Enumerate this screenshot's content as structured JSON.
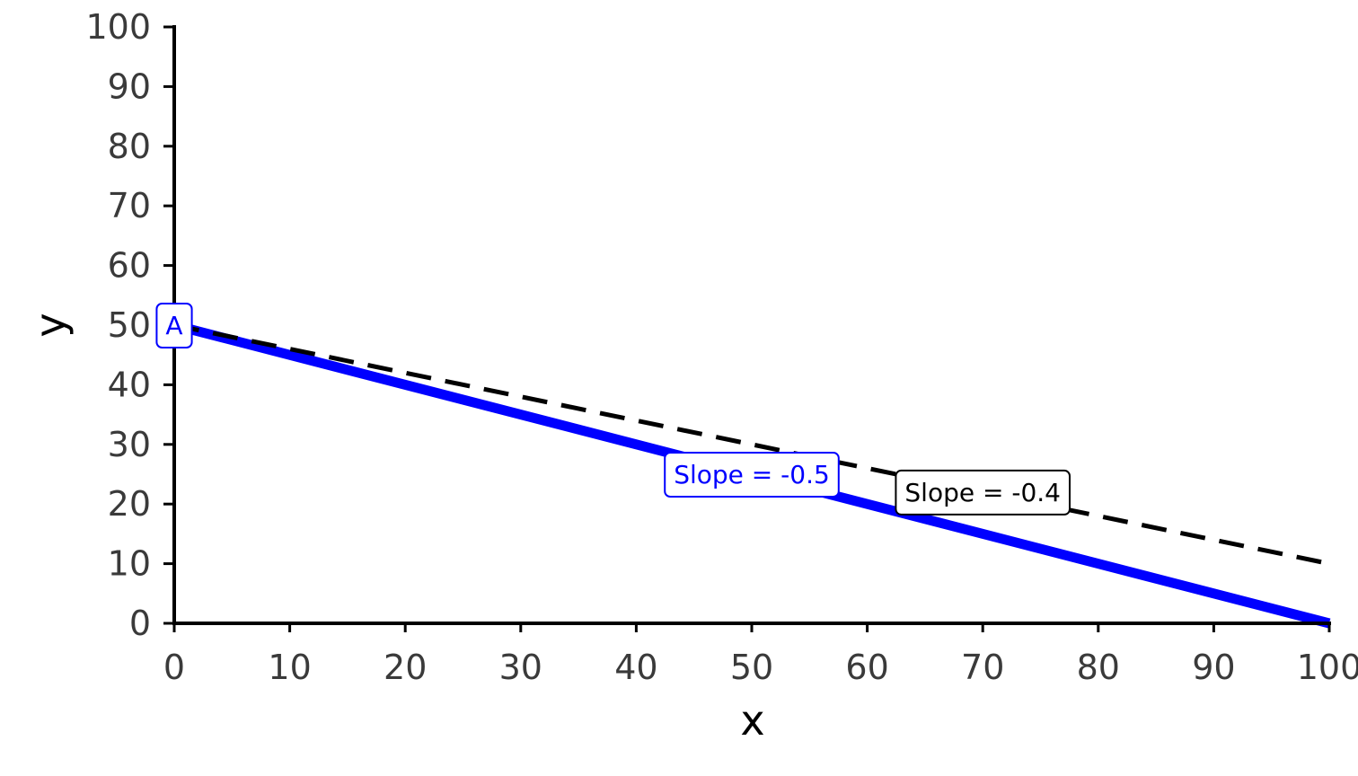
{
  "chart_data": {
    "type": "line",
    "title": "",
    "xlabel": "x",
    "ylabel": "y",
    "xlim": [
      0,
      100
    ],
    "ylim": [
      0,
      100
    ],
    "x_ticks": [
      0,
      10,
      20,
      30,
      40,
      50,
      60,
      70,
      80,
      90,
      100
    ],
    "y_ticks": [
      0,
      10,
      20,
      30,
      40,
      50,
      60,
      70,
      80,
      90,
      100
    ],
    "grid": false,
    "series": [
      {
        "x": [
          0,
          100
        ],
        "y": [
          50,
          0
        ],
        "style": "solid",
        "color": "#0000ff"
      },
      {
        "x": [
          0,
          100
        ],
        "y": [
          50,
          10
        ],
        "style": "dashed",
        "color": "#000000"
      }
    ],
    "annotations": [
      {
        "text": "Slope = -0.5",
        "x": 50,
        "y": 25,
        "color": "#0000ff"
      },
      {
        "text": "Slope = -0.4",
        "x": 70,
        "y": 22,
        "color": "#000000"
      },
      {
        "text": "A",
        "x": 0,
        "y": 50,
        "color": "#0000ff"
      }
    ]
  }
}
